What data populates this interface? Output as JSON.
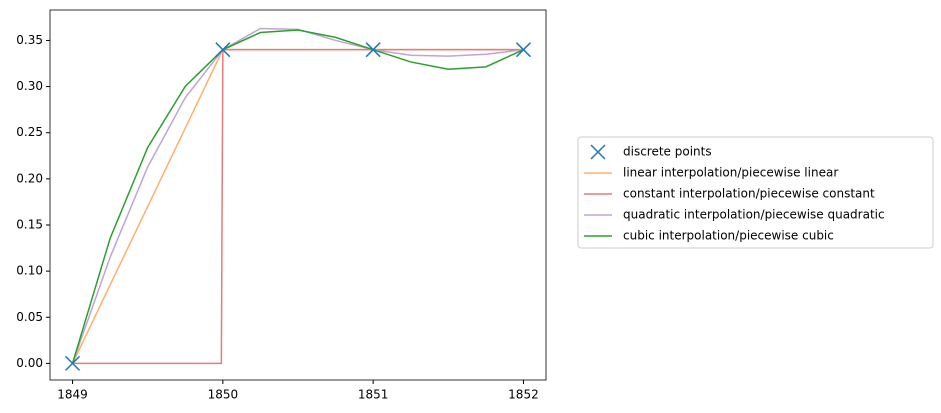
{
  "chart_data": {
    "type": "line",
    "xlim": [
      1848.85,
      1852.15
    ],
    "xticks": [
      1849,
      1850,
      1851,
      1852
    ],
    "ylim": [
      -0.018,
      0.383
    ],
    "yticks": [
      {
        "value": 0,
        "label": "0.00"
      },
      0.05,
      {
        "value": 0.1,
        "label": "0.10"
      },
      0.15,
      {
        "value": 0.2,
        "label": "0.20"
      },
      0.25,
      {
        "value": 0.3,
        "label": "0.30"
      },
      0.35
    ],
    "legend": "outside-right",
    "series": [
      {
        "name": "discrete points",
        "color": "#1f77b4",
        "marker": "x",
        "x": [
          1849,
          1850,
          1851,
          1852
        ],
        "values": [
          0,
          0.34,
          0.34,
          0.34
        ]
      },
      {
        "name": "linear interpolation/piecewise linear",
        "color": "#ffb06a",
        "x": [
          1849,
          1850,
          1851,
          1852
        ],
        "values": [
          0,
          0.34,
          0.34,
          0.34
        ]
      },
      {
        "name": "constant interpolation/piecewise constant",
        "color": "#e57b7c",
        "x": [
          1849,
          1849.99,
          1850,
          1851,
          1852
        ],
        "values": [
          0,
          0,
          0.34,
          0.34,
          0.34
        ]
      },
      {
        "name": "quadratic interpolation/piecewise quadratic",
        "color": "#bfa4d6",
        "x": [
          1849,
          1849.25,
          1849.5,
          1849.75,
          1850,
          1850.25,
          1850.5,
          1850.75,
          1851,
          1851.25,
          1851.5,
          1851.75,
          1852
        ],
        "values": [
          0,
          0.115,
          0.213,
          0.288,
          0.34,
          0.363,
          0.362,
          0.35,
          0.34,
          0.334,
          0.333,
          0.335,
          0.34
        ]
      },
      {
        "name": "cubic interpolation/piecewise cubic",
        "color": "#2ca02c",
        "x": [
          1849,
          1849.25,
          1849.5,
          1849.75,
          1850,
          1850.25,
          1850.5,
          1850.75,
          1851,
          1851.25,
          1851.5,
          1851.75,
          1852
        ],
        "values": [
          0,
          0.1355,
          0.234,
          0.3002,
          0.34,
          0.3586,
          0.3613,
          0.3533,
          0.34,
          0.3267,
          0.3188,
          0.3214,
          0.34
        ]
      }
    ]
  }
}
